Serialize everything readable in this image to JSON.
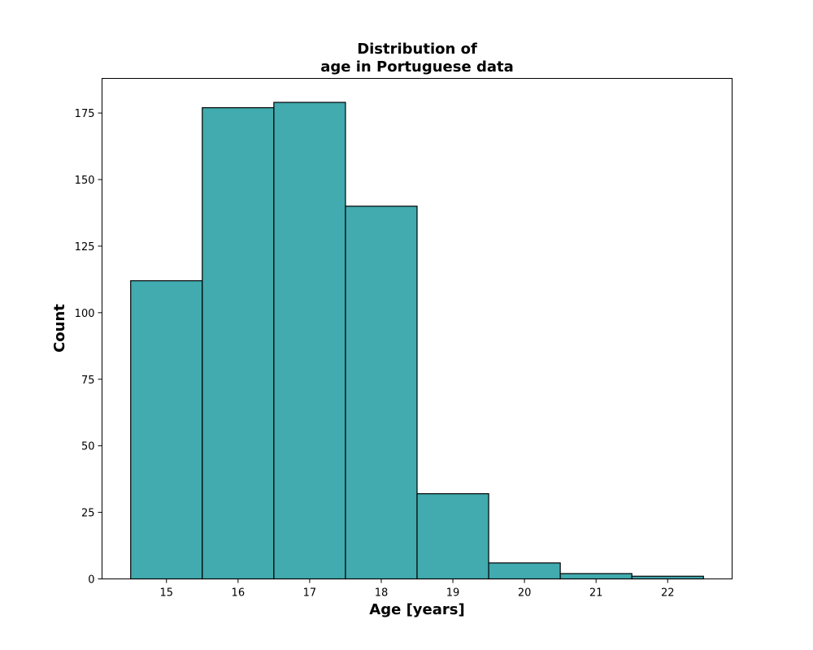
{
  "chart_data": {
    "type": "bar",
    "title": [
      "Distribution of",
      "age in Portuguese data"
    ],
    "xlabel": "Age [years]",
    "ylabel": "Count",
    "categories": [
      "15",
      "16",
      "17",
      "18",
      "19",
      "20",
      "21",
      "22"
    ],
    "values": [
      112,
      177,
      179,
      140,
      32,
      6,
      2,
      1
    ],
    "xlim": [
      14.1,
      22.9
    ],
    "ylim": [
      0,
      188
    ],
    "yticks": [
      0,
      25,
      50,
      75,
      100,
      125,
      150,
      175
    ],
    "grid": false,
    "bar_color": "#41abaf",
    "edge_color": "#000000"
  }
}
